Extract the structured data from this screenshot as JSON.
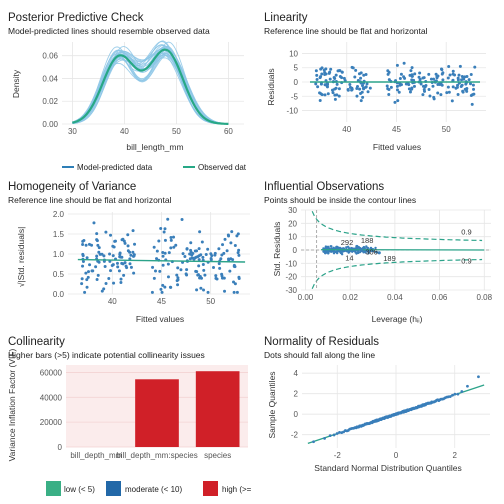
{
  "colors": {
    "observed": "#27a886",
    "predicted": "#2e7fb7",
    "predicted_light": "#8cc6e6",
    "points": "#3a7fba",
    "smooth": "#2ca38a",
    "reference": "#222222",
    "contour": "#2ca38a",
    "panel_bg_collin": "#fbecec",
    "low": "#3aaf85",
    "moderate": "#2268a8",
    "high": "#d02028",
    "grid": "#e6e6e6"
  },
  "chart_data": [
    {
      "id": "ppc",
      "type": "line",
      "title": "Posterior Predictive Check",
      "subtitle": "Model-predicted lines should resemble observed data",
      "xlabel": "bill_length_mm",
      "ylabel": "Density",
      "xlim": [
        28,
        63
      ],
      "ylim": [
        0,
        0.072
      ],
      "xticks": [
        "30",
        "40",
        "50",
        "60"
      ],
      "yticks": [
        "0.00",
        "0.02",
        "0.04",
        "0.06"
      ],
      "legend": [
        "Model-predicted data",
        "Observed dat"
      ],
      "density_components": [
        {
          "mean": 39.0,
          "sd": 3.2,
          "weight": 0.47
        },
        {
          "mean": 48.0,
          "sd": 3.3,
          "weight": 0.53
        }
      ],
      "grid": true
    },
    {
      "id": "linearity",
      "type": "scatter",
      "title": "Linearity",
      "subtitle": "Reference line should be flat and horizontal",
      "xlabel": "Fitted values",
      "ylabel": "Residuals",
      "xlim": [
        35.5,
        54
      ],
      "ylim": [
        -14,
        14
      ],
      "xticks": [
        "40",
        "45",
        "50"
      ],
      "yticks": [
        "-10",
        "-5",
        "0",
        "5",
        "10"
      ],
      "smooth_y": 0,
      "grid": true
    },
    {
      "id": "homogeneity",
      "type": "scatter",
      "title": "Homogeneity of Variance",
      "subtitle": "Reference line should be flat and horizontal",
      "xlabel": "Fitted values",
      "ylabel": "√|Std. residuals|",
      "xlim": [
        35.5,
        54
      ],
      "ylim": [
        0,
        2.05
      ],
      "xticks": [
        "40",
        "45",
        "50"
      ],
      "yticks": [
        "0.0",
        "0.5",
        "1.0",
        "1.5",
        "2.0"
      ],
      "smooth_from": 0.86,
      "smooth_to": 0.8,
      "grid": true
    },
    {
      "id": "influence",
      "type": "scatter",
      "title": "Influential Observations",
      "subtitle": "Points should be inside the contour lines",
      "xlabel": "Leverage (hᵢᵢ)",
      "ylabel": "Std. Residuals",
      "xlim": [
        -0.002,
        0.083
      ],
      "ylim": [
        -30,
        30
      ],
      "xticks": [
        "0.00",
        "0.02",
        "0.04",
        "0.06",
        "0.08"
      ],
      "yticks": [
        "-30",
        "-20",
        "-10",
        "0",
        "10",
        "20",
        "30"
      ],
      "contour_label": "0.9",
      "point_labels": [
        "292",
        "188",
        "306",
        "14",
        "189"
      ],
      "grid": true
    },
    {
      "id": "collinearity",
      "type": "bar",
      "title": "Collinearity",
      "subtitle": "Higher bars (>5) indicate potential collinearity issues",
      "xlabel": "",
      "ylabel": "Variance Inflation Factor (VIF)",
      "categories": [
        "bill_depth_mm",
        "bill_depth_mm:species",
        "species"
      ],
      "values": [
        2,
        54500,
        61000
      ],
      "risk": [
        "low",
        "high",
        "high"
      ],
      "ylim": [
        0,
        66000
      ],
      "yticks": [
        "0",
        "20000",
        "40000",
        "60000"
      ],
      "legend": [
        "low (< 5)",
        "moderate (< 10)",
        "high (>="
      ],
      "grid": true
    },
    {
      "id": "normality",
      "type": "scatter",
      "title": "Normality of Residuals",
      "subtitle": "Dots should fall along the line",
      "xlabel": "Standard Normal Distribution Quantiles",
      "ylabel": "Sample Quantiles",
      "xlim": [
        -3.2,
        3.2
      ],
      "ylim": [
        -3.3,
        4.8
      ],
      "xticks": [
        "-2",
        "0",
        "2"
      ],
      "yticks": [
        "-2",
        "0",
        "2",
        "4"
      ],
      "grid": true
    }
  ]
}
